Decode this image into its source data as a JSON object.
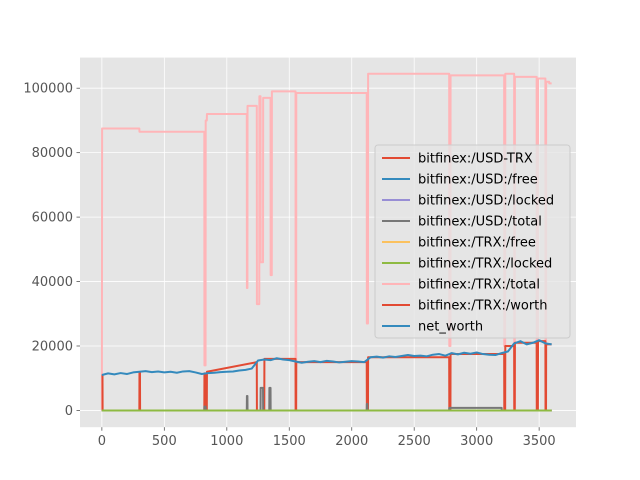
{
  "chart_data": {
    "type": "line",
    "title": "",
    "xlabel": "",
    "ylabel": "",
    "xlim": [
      -175,
      3795
    ],
    "ylim": [
      -5200,
      109500
    ],
    "x_ticks": [
      0,
      500,
      1000,
      1500,
      2000,
      2500,
      3000,
      3500
    ],
    "y_ticks": [
      0,
      20000,
      40000,
      60000,
      80000,
      100000
    ],
    "grid": true,
    "legend_position": "center-right",
    "series": [
      {
        "name": "bitfinex:/USD-TRX",
        "color": "#E24A33",
        "x": [
          0,
          5,
          6,
          300,
          301,
          305,
          306,
          820,
          821,
          830,
          831,
          840,
          841,
          1240,
          1241,
          1300,
          1301,
          1550,
          1551,
          1555,
          1556,
          2120,
          2121,
          2130,
          2131,
          2780,
          2781,
          2790,
          2791,
          3220,
          3221,
          3228,
          3229,
          3300,
          3301,
          3305,
          3306,
          3480,
          3481,
          3490,
          3491,
          3550,
          3551,
          3555,
          3556,
          3600
        ],
        "y": [
          11000,
          11000,
          0,
          0,
          11800,
          11800,
          0,
          0,
          11500,
          11500,
          0,
          0,
          12000,
          15000,
          0,
          0,
          16000,
          16000,
          0,
          0,
          15000,
          15000,
          0,
          0,
          16500,
          16500,
          0,
          0,
          17500,
          17500,
          0,
          0,
          20000,
          20000,
          0,
          0,
          21000,
          21000,
          0,
          0,
          21500,
          21500,
          0,
          0,
          20500,
          20500
        ]
      },
      {
        "name": "bitfinex:/USD:/free",
        "color": "#348ABD",
        "x": [
          0,
          3600
        ],
        "y": [
          0,
          0
        ]
      },
      {
        "name": "bitfinex:/USD:/locked",
        "color": "#988ED5",
        "x": [
          0,
          3600
        ],
        "y": [
          0,
          0
        ]
      },
      {
        "name": "bitfinex:/USD:/total",
        "color": "#777777",
        "x": [
          0,
          820,
          821,
          830,
          831,
          1160,
          1161,
          1165,
          1166,
          1270,
          1271,
          1290,
          1291,
          1340,
          1341,
          1350,
          1351,
          2120,
          2121,
          2125,
          2126,
          2780,
          2781,
          3200,
          3201,
          3600
        ],
        "y": [
          0,
          0,
          1200,
          1200,
          0,
          0,
          4500,
          4500,
          0,
          0,
          7000,
          7000,
          0,
          0,
          7000,
          7000,
          0,
          0,
          2000,
          2000,
          0,
          0,
          800,
          800,
          0,
          0
        ]
      },
      {
        "name": "bitfinex:/TRX:/free",
        "color": "#FBC15E",
        "x": [
          0,
          3600
        ],
        "y": [
          0,
          0
        ]
      },
      {
        "name": "bitfinex:/TRX:/locked",
        "color": "#8EBA42",
        "x": [
          0,
          3600
        ],
        "y": [
          0,
          0
        ]
      },
      {
        "name": "bitfinex:/TRX:/total",
        "color": "#FFB5B8",
        "x": [
          0,
          2,
          3,
          300,
          301,
          820,
          821,
          830,
          831,
          840,
          841,
          1160,
          1161,
          1165,
          1166,
          1240,
          1241,
          1260,
          1261,
          1270,
          1271,
          1290,
          1291,
          1350,
          1351,
          1360,
          1361,
          1550,
          1551,
          1555,
          1556,
          2120,
          2121,
          2130,
          2131,
          2780,
          2781,
          2790,
          2791,
          3220,
          3221,
          3228,
          3229,
          3300,
          3301,
          3305,
          3306,
          3480,
          3481,
          3490,
          3491,
          3550,
          3551,
          3555,
          3556,
          3580,
          3581,
          3600
        ],
        "y": [
          0,
          87500,
          87500,
          87500,
          86500,
          86500,
          14000,
          14000,
          90000,
          90000,
          92000,
          92000,
          38000,
          38000,
          94500,
          94500,
          33000,
          33000,
          97500,
          97500,
          46000,
          46000,
          97000,
          97000,
          42000,
          42000,
          99000,
          99000,
          0,
          0,
          98500,
          98500,
          27000,
          27000,
          104500,
          104500,
          20000,
          20000,
          104000,
          104000,
          20000,
          20000,
          104500,
          104500,
          1000,
          1000,
          103500,
          103500,
          20000,
          20000,
          103000,
          103000,
          0,
          0,
          102000,
          102000,
          101500,
          101500
        ]
      },
      {
        "name": "bitfinex:/TRX:/worth",
        "color": "#E24A33",
        "x": [
          0,
          3600
        ],
        "y": [
          0,
          0
        ]
      },
      {
        "name": "net_worth",
        "color": "#348ABD",
        "x": [
          0,
          50,
          100,
          150,
          200,
          250,
          300,
          350,
          400,
          450,
          500,
          550,
          600,
          650,
          700,
          750,
          800,
          850,
          900,
          950,
          1000,
          1050,
          1100,
          1150,
          1200,
          1250,
          1300,
          1350,
          1400,
          1450,
          1500,
          1550,
          1600,
          1650,
          1700,
          1750,
          1800,
          1850,
          1900,
          1950,
          2000,
          2050,
          2100,
          2150,
          2200,
          2250,
          2300,
          2350,
          2400,
          2450,
          2500,
          2550,
          2600,
          2650,
          2700,
          2750,
          2800,
          2850,
          2900,
          2950,
          3000,
          3050,
          3100,
          3150,
          3200,
          3250,
          3300,
          3350,
          3400,
          3450,
          3500,
          3550,
          3600
        ],
        "y": [
          11000,
          11500,
          11200,
          11600,
          11300,
          11800,
          12000,
          12200,
          11900,
          12100,
          11800,
          12000,
          11700,
          12100,
          12200,
          11800,
          11300,
          11600,
          11700,
          11900,
          12000,
          12100,
          12400,
          12600,
          13000,
          15500,
          15800,
          15600,
          16200,
          15800,
          15600,
          15200,
          14800,
          15100,
          15300,
          15000,
          15400,
          15200,
          14900,
          15100,
          15300,
          15200,
          15000,
          16500,
          16700,
          16400,
          16800,
          16600,
          16900,
          17200,
          16900,
          17000,
          16800,
          17300,
          17500,
          17000,
          17800,
          17400,
          17900,
          17600,
          18000,
          17500,
          17300,
          17200,
          17800,
          18300,
          20800,
          21500,
          20500,
          21000,
          21800,
          20800,
          20500
        ]
      }
    ]
  }
}
